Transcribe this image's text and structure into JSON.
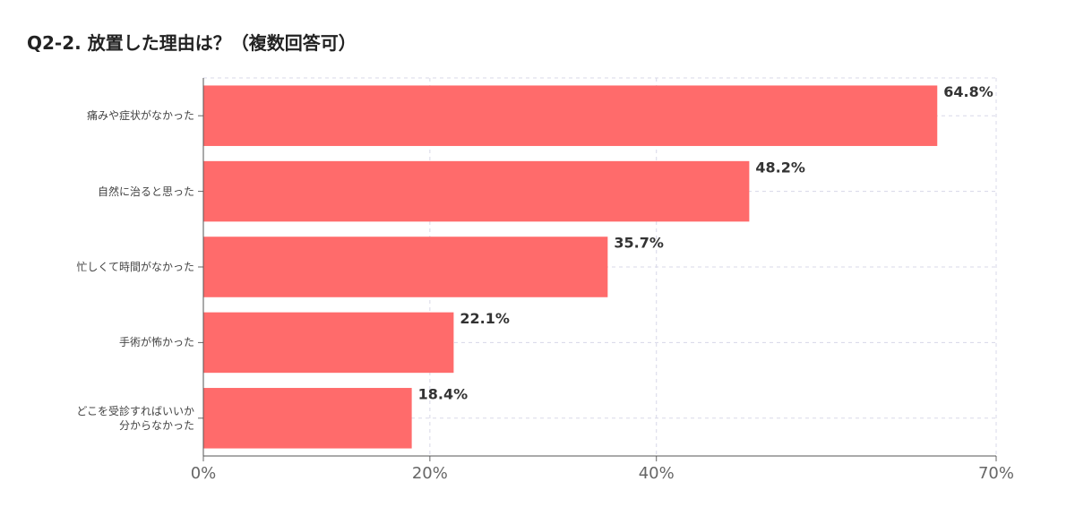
{
  "chart_data": {
    "type": "barh",
    "title": "Q2-2. 放置した理由は？（複数回答可）",
    "categories": [
      "痛みや症状がなかった",
      "自然に治ると思った",
      "忙しくて時間がなかった",
      "手術が怖かった",
      "どこを受診すればいいか\n分からなかった"
    ],
    "values": [
      64.8,
      48.2,
      35.7,
      22.1,
      18.4
    ],
    "value_labels": [
      "64.8%",
      "48.2%",
      "35.7%",
      "22.1%",
      "18.4%"
    ],
    "color": "#ff6b6b",
    "xlim": [
      0,
      70
    ],
    "xticks": [
      {
        "value": 0,
        "label": "0%"
      },
      {
        "value": 20,
        "label": "20%"
      },
      {
        "value": 40,
        "label": "40%"
      },
      {
        "value": 70,
        "label": "70%"
      }
    ],
    "grid": true
  }
}
